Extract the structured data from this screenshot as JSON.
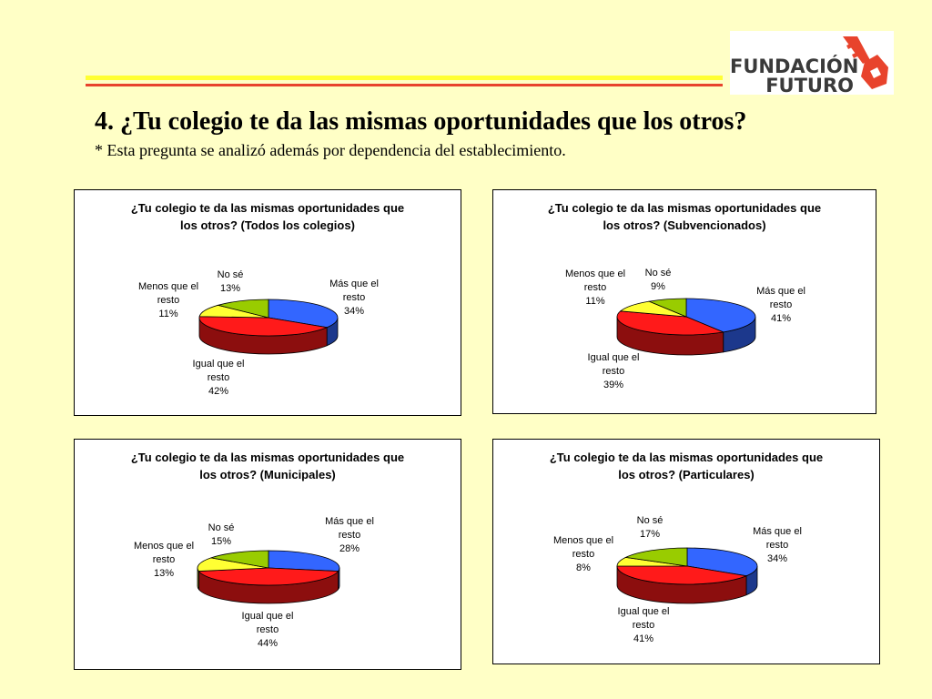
{
  "header": {
    "title": "4. ¿Tu colegio te da las mismas oportunidades que los otros?",
    "subtitle": "* Esta pregunta se analizó además por dependencia del establecimiento.",
    "logo_line1": "FUNDACIÓN",
    "logo_line2": "FUTURO"
  },
  "colors": {
    "background": "#ffffc6",
    "band_yellow": "#ffff33",
    "band_red": "#e8432c",
    "mas": "#3366ff",
    "igual": "#ff1a1a",
    "menos": "#ffff33",
    "nose": "#99cc00",
    "logo_key": "#e8432c"
  },
  "chart_data": [
    {
      "type": "pie",
      "title": "¿Tu colegio te da las mismas oportunidades que los otros? (Todos los colegios)",
      "title_line1": "¿Tu colegio te da las mismas oportunidades que",
      "title_line2": "los otros? (Todos los colegios)",
      "categories": [
        "Más que el resto",
        "Igual que el resto",
        "Menos que el resto",
        "No sé"
      ],
      "values": [
        34,
        42,
        11,
        13
      ],
      "labels": [
        {
          "l1": "Más que el",
          "l2": "resto",
          "pct": "34%"
        },
        {
          "l1": "Igual que el",
          "l2": "resto",
          "pct": "42%"
        },
        {
          "l1": "Menos que el",
          "l2": "resto",
          "pct": "11%"
        },
        {
          "l1": "No sé",
          "l2": "",
          "pct": "13%"
        }
      ]
    },
    {
      "type": "pie",
      "title": "¿Tu colegio te da las mismas oportunidades que los otros? (Subvencionados)",
      "title_line1": "¿Tu colegio te da las mismas oportunidades que",
      "title_line2": "los otros? (Subvencionados)",
      "categories": [
        "Más que el resto",
        "Igual que el resto",
        "Menos que el resto",
        "No sé"
      ],
      "values": [
        41,
        39,
        11,
        9
      ],
      "labels": [
        {
          "l1": "Más que el",
          "l2": "resto",
          "pct": "41%"
        },
        {
          "l1": "Igual que el",
          "l2": "resto",
          "pct": "39%"
        },
        {
          "l1": "Menos que el",
          "l2": "resto",
          "pct": "11%"
        },
        {
          "l1": "No sé",
          "l2": "",
          "pct": "9%"
        }
      ]
    },
    {
      "type": "pie",
      "title": "¿Tu colegio te da las mismas oportunidades que los otros? (Municipales)",
      "title_line1": "¿Tu colegio te da las mismas oportunidades que",
      "title_line2": "los otros? (Municipales)",
      "categories": [
        "Más que el resto",
        "Igual que el resto",
        "Menos que el resto",
        "No sé"
      ],
      "values": [
        28,
        44,
        13,
        15
      ],
      "labels": [
        {
          "l1": "Más que el",
          "l2": "resto",
          "pct": "28%"
        },
        {
          "l1": "Igual que el",
          "l2": "resto",
          "pct": "44%"
        },
        {
          "l1": "Menos que el",
          "l2": "resto",
          "pct": "13%"
        },
        {
          "l1": "No sé",
          "l2": "",
          "pct": "15%"
        }
      ]
    },
    {
      "type": "pie",
      "title": "¿Tu colegio te da las mismas oportunidades que los otros? (Particulares)",
      "title_line1": "¿Tu colegio te da las mismas oportunidades que",
      "title_line2": "los otros? (Particulares)",
      "categories": [
        "Más que el resto",
        "Igual que el resto",
        "Menos que el resto",
        "No sé"
      ],
      "values": [
        34,
        41,
        8,
        17
      ],
      "labels": [
        {
          "l1": "Más que el",
          "l2": "resto",
          "pct": "34%"
        },
        {
          "l1": "Igual que el",
          "l2": "resto",
          "pct": "41%"
        },
        {
          "l1": "Menos que el",
          "l2": "resto",
          "pct": "8%"
        },
        {
          "l1": "No sé",
          "l2": "",
          "pct": "17%"
        }
      ]
    }
  ]
}
